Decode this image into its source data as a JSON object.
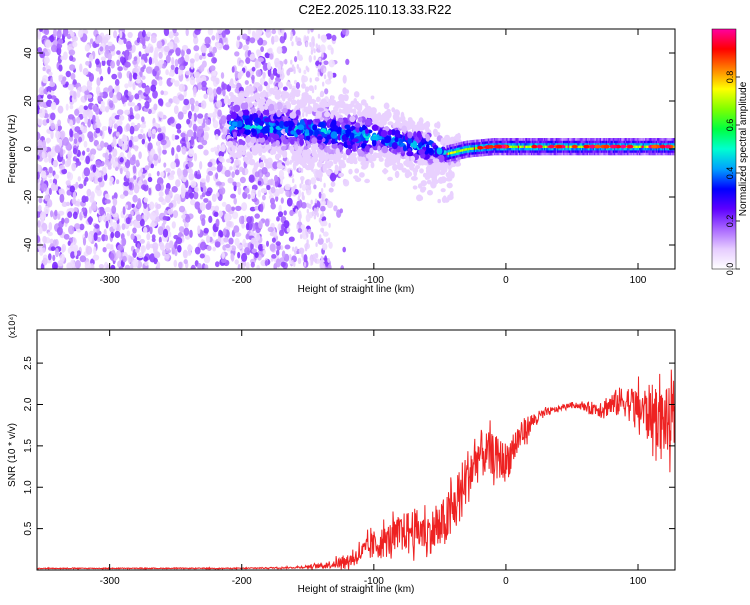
{
  "figure_title": "C2E2.2025.110.13.33.R22",
  "chart_data": [
    {
      "type": "heatmap",
      "xlabel": "Height of straight line (km)",
      "ylabel": "Frequency (Hz)",
      "xlim": [
        -355,
        128
      ],
      "ylim": [
        -50,
        50
      ],
      "x_ticks": [
        -300,
        -200,
        -100,
        0,
        100
      ],
      "y_ticks": [
        -40,
        -20,
        0,
        20,
        40
      ],
      "colorbar": {
        "label": "Normalized spectral amplitude",
        "range": [
          0,
          1
        ],
        "ticks": [
          "0.0",
          "0.2",
          "0.4",
          "0.6",
          "0.8"
        ],
        "tick_values": [
          0,
          0.2,
          0.4,
          0.6,
          0.8
        ],
        "colors": [
          "#ffffff",
          "#e6ccff",
          "#a866ff",
          "#5e00ff",
          "#0000ff",
          "#00a0ff",
          "#00ffd0",
          "#00ff40",
          "#80ff00",
          "#ffff00",
          "#ff8000",
          "#ff0000",
          "#ff00a0"
        ]
      },
      "ridge": {
        "description": "dominant frequency track",
        "x": [
          -205,
          -180,
          -150,
          -120,
          -100,
          -80,
          -60,
          -45,
          -30,
          -10,
          0,
          30,
          60,
          90,
          128
        ],
        "y": [
          10,
          9,
          8,
          6,
          5,
          3,
          1,
          -2,
          0,
          1,
          1,
          1,
          1,
          1,
          1
        ]
      }
    },
    {
      "type": "line",
      "xlabel": "Height of straight line (km)",
      "ylabel": "SNR (10 * v/v)",
      "multiplier": "(x10⁴)",
      "xlim": [
        -355,
        128
      ],
      "ylim": [
        0,
        2.9
      ],
      "x_ticks": [
        -300,
        -200,
        -100,
        0,
        100
      ],
      "y_ticks": [
        0.5,
        1.0,
        1.5,
        2.0,
        2.5
      ],
      "series": [
        {
          "color": "#ee2222",
          "x": [
            -355,
            -300,
            -250,
            -200,
            -160,
            -140,
            -120,
            -110,
            -100,
            -90,
            -80,
            -70,
            -60,
            -50,
            -40,
            -30,
            -20,
            -10,
            0,
            10,
            20,
            30,
            40,
            50,
            60,
            70,
            80,
            90,
            100,
            110,
            120,
            128
          ],
          "y": [
            0.02,
            0.02,
            0.02,
            0.02,
            0.03,
            0.05,
            0.1,
            0.2,
            0.3,
            0.35,
            0.45,
            0.5,
            0.45,
            0.5,
            0.7,
            1.1,
            1.4,
            1.4,
            1.3,
            1.6,
            1.8,
            1.9,
            1.95,
            2.0,
            1.97,
            1.95,
            2.0,
            2.05,
            1.95,
            1.9,
            1.8,
            1.8
          ],
          "noise": [
            0.005,
            0.005,
            0.005,
            0.006,
            0.01,
            0.03,
            0.08,
            0.12,
            0.18,
            0.2,
            0.22,
            0.25,
            0.25,
            0.3,
            0.35,
            0.35,
            0.3,
            0.25,
            0.25,
            0.2,
            0.1,
            0.05,
            0.03,
            0.03,
            0.05,
            0.1,
            0.15,
            0.2,
            0.25,
            0.35,
            0.4,
            0.4
          ]
        }
      ]
    }
  ]
}
